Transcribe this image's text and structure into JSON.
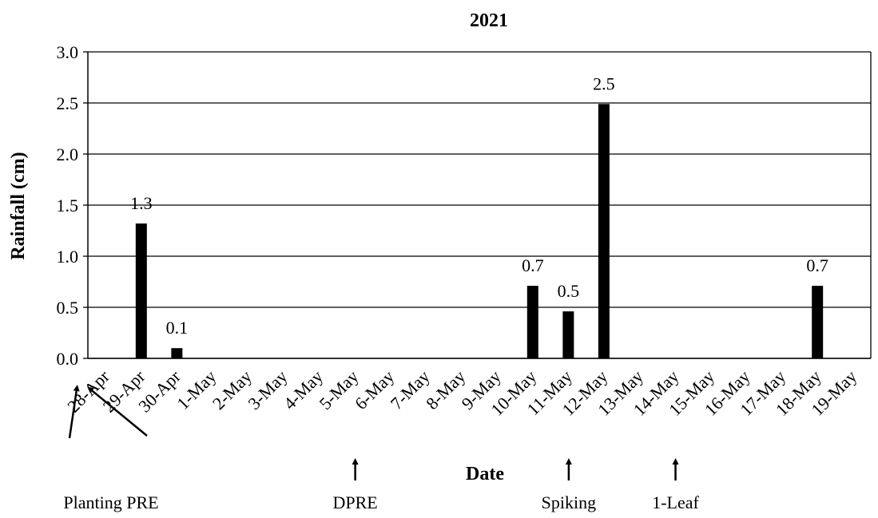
{
  "chart_data": {
    "type": "bar",
    "title": "2021",
    "xlabel": "Date",
    "ylabel": "Rainfall (cm)",
    "ylim": [
      0,
      3.0
    ],
    "yticks": [
      "0.0",
      "0.5",
      "1.0",
      "1.5",
      "2.0",
      "2.5",
      "3.0"
    ],
    "grid": true,
    "categories": [
      "28-Apr",
      "29-Apr",
      "30-Apr",
      "1-May",
      "2-May",
      "3-May",
      "4-May",
      "5-May",
      "6-May",
      "7-May",
      "8-May",
      "9-May",
      "10-May",
      "11-May",
      "12-May",
      "13-May",
      "14-May",
      "15-May",
      "16-May",
      "17-May",
      "18-May",
      "19-May"
    ],
    "values": [
      0,
      1.32,
      0.1,
      0,
      0,
      0,
      0,
      0,
      0,
      0,
      0,
      0,
      0.71,
      0.46,
      2.49,
      0,
      0,
      0,
      0,
      0,
      0.71,
      0
    ],
    "data_labels": [
      {
        "category": "29-Apr",
        "text": "1.3"
      },
      {
        "category": "30-Apr",
        "text": "0.1"
      },
      {
        "category": "10-May",
        "text": "0.7"
      },
      {
        "category": "11-May",
        "text": "0.5"
      },
      {
        "category": "12-May",
        "text": "2.5"
      },
      {
        "category": "18-May",
        "text": "0.7"
      }
    ],
    "annotations": [
      {
        "text": "Planting PRE",
        "targets": [
          "28-Apr",
          "28-Apr"
        ]
      },
      {
        "text": "DPRE",
        "targets": [
          "6-May"
        ]
      },
      {
        "text": "Spiking",
        "targets": [
          "12-May"
        ]
      },
      {
        "text": "1-Leaf",
        "targets": [
          "15-May"
        ]
      }
    ],
    "bar_color": "#000000"
  }
}
